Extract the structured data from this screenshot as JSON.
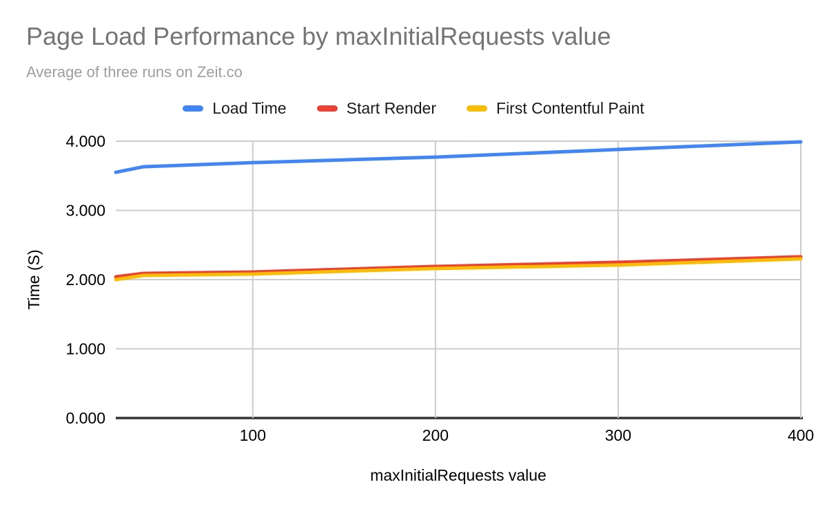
{
  "chart_data": {
    "type": "line",
    "title": "Page Load Performance by maxInitialRequests value",
    "subtitle": "Average of three runs on Zeit.co",
    "xlabel": "maxInitialRequests value",
    "ylabel": "Time (S)",
    "x": [
      25,
      40,
      100,
      200,
      300,
      400
    ],
    "series": [
      {
        "name": "Load Time",
        "color": "#4285F4",
        "values": [
          3.55,
          3.63,
          3.69,
          3.77,
          3.88,
          3.99
        ]
      },
      {
        "name": "Start Render",
        "color": "#EA4335",
        "values": [
          2.04,
          2.09,
          2.11,
          2.19,
          2.25,
          2.33
        ]
      },
      {
        "name": "First Contentful Paint",
        "color": "#FBBC04",
        "values": [
          2.0,
          2.06,
          2.08,
          2.16,
          2.21,
          2.3
        ]
      }
    ],
    "xlim": [
      25,
      400
    ],
    "ylim": [
      0,
      4
    ],
    "x_ticks": [
      100,
      200,
      300,
      400
    ],
    "y_ticks": [
      {
        "value": 4,
        "label": "4.000"
      },
      {
        "value": 3,
        "label": "3.000"
      },
      {
        "value": 2,
        "label": "2.000"
      },
      {
        "value": 1,
        "label": "1.000"
      },
      {
        "value": 0,
        "label": "0.000"
      }
    ],
    "grid": true,
    "legend_position": "top",
    "colors": {
      "title_text": "#757575",
      "subtitle_text": "#9e9e9e",
      "gridline": "#cccccc",
      "axis_baseline": "#333333",
      "tick_text": "#000000"
    }
  }
}
